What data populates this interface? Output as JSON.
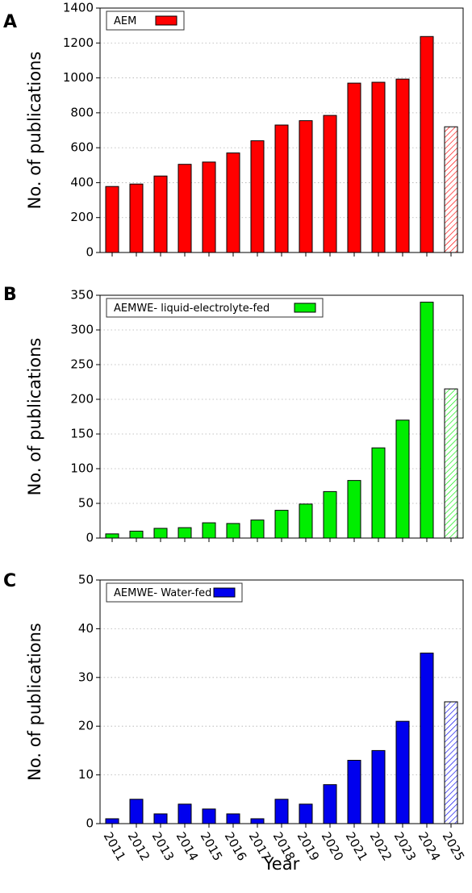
{
  "chart_data": [
    {
      "type": "bar",
      "panel_label": "A",
      "categories": [
        "2011",
        "2012",
        "2013",
        "2014",
        "2015",
        "2016",
        "2017",
        "2018",
        "2019",
        "2020",
        "2021",
        "2022",
        "2023",
        "2024",
        "2025"
      ],
      "series": [
        {
          "name": "AEM",
          "values": [
            378,
            392,
            438,
            505,
            518,
            570,
            640,
            730,
            755,
            785,
            970,
            975,
            993,
            1237,
            720
          ],
          "color": "#ff0000"
        }
      ],
      "hatched_categories": [
        "2025"
      ],
      "ylabel": "No. of publications",
      "xlabel": "",
      "ylim": [
        0,
        1400
      ],
      "yticks": [
        0,
        200,
        400,
        600,
        800,
        1000,
        1200,
        1400
      ],
      "grid": "horizontal dotted",
      "legend_position": "top-left"
    },
    {
      "type": "bar",
      "panel_label": "B",
      "categories": [
        "2011",
        "2012",
        "2013",
        "2014",
        "2015",
        "2016",
        "2017",
        "2018",
        "2019",
        "2020",
        "2021",
        "2022",
        "2023",
        "2024",
        "2025"
      ],
      "series": [
        {
          "name": "AEMWE- liquid-electrolyte-fed",
          "values": [
            6,
            10,
            14,
            15,
            22,
            21,
            26,
            40,
            49,
            67,
            83,
            130,
            170,
            340,
            215
          ],
          "color": "#00ee00"
        }
      ],
      "hatched_categories": [
        "2025"
      ],
      "ylabel": "No. of publications",
      "xlabel": "",
      "ylim": [
        0,
        350
      ],
      "yticks": [
        0,
        50,
        100,
        150,
        200,
        250,
        300,
        350
      ],
      "grid": "horizontal dotted",
      "legend_position": "top-left"
    },
    {
      "type": "bar",
      "panel_label": "C",
      "categories": [
        "2011",
        "2012",
        "2013",
        "2014",
        "2015",
        "2016",
        "2017",
        "2018",
        "2019",
        "2020",
        "2021",
        "2022",
        "2023",
        "2024",
        "2025"
      ],
      "series": [
        {
          "name": "AEMWE- Water-fed",
          "values": [
            1,
            5,
            2,
            4,
            3,
            2,
            1,
            5,
            4,
            8,
            13,
            15,
            21,
            35,
            25
          ],
          "color": "#0000ee"
        }
      ],
      "hatched_categories": [
        "2025"
      ],
      "ylabel": "No. of publications",
      "xlabel": "Year",
      "ylim": [
        0,
        50
      ],
      "yticks": [
        0,
        10,
        20,
        30,
        40,
        50
      ],
      "grid": "horizontal dotted",
      "legend_position": "top-left"
    }
  ]
}
